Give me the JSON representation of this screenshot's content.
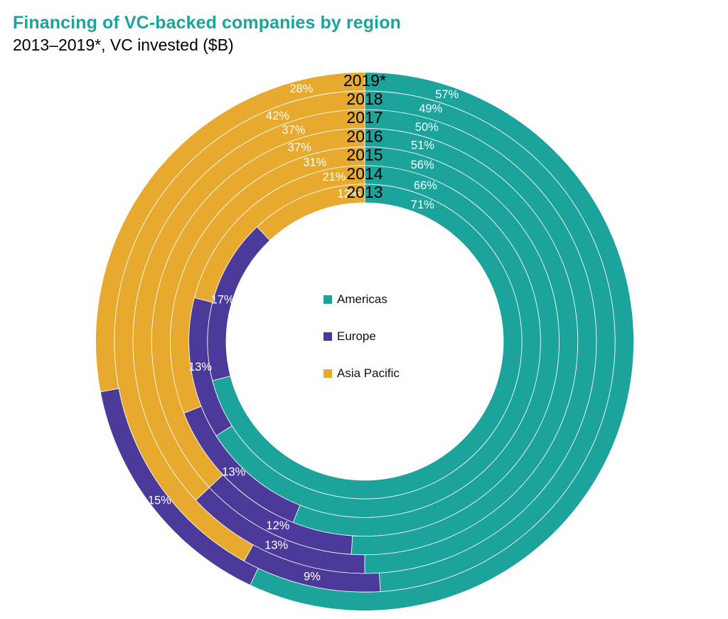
{
  "title": "Financing of VC-backed companies by region",
  "subtitle": "2013–2019*, VC invested ($B)",
  "colors": {
    "Americas": "#1ba39c",
    "Europe": "#4b3a9a",
    "Asia Pacific": "#e8aa2e"
  },
  "legend": [
    {
      "label": "Americas",
      "color": "#1ba39c"
    },
    {
      "label": "Europe",
      "color": "#4b3a9a"
    },
    {
      "label": "Asia Pacific",
      "color": "#e8aa2e"
    }
  ],
  "chart_data": {
    "type": "donut",
    "title": "Financing of VC-backed companies by region",
    "subtitle": "2013–2019*, VC invested ($B)",
    "rings_inner_to_outer": [
      "2013",
      "2014",
      "2015",
      "2016",
      "2017",
      "2018",
      "2019*"
    ],
    "series": [
      {
        "name": "Americas",
        "values": [
          71,
          66,
          56,
          51,
          50,
          49,
          57
        ]
      },
      {
        "name": "Europe",
        "values": [
          17,
          13,
          13,
          12,
          13,
          9,
          15
        ]
      },
      {
        "name": "Asia Pacific",
        "values": [
          12,
          21,
          31,
          37,
          37,
          42,
          28
        ]
      }
    ],
    "labels": {
      "Americas": [
        "71%",
        "66%",
        "56%",
        "51%",
        "50%",
        "49%",
        "57%"
      ],
      "Europe": [
        "17%",
        "13%",
        "13%",
        "12%",
        "13%",
        "9%",
        "15%"
      ],
      "Asia Pacific": [
        "12%",
        "21%",
        "31%",
        "37%",
        "37%",
        "42%",
        "28%"
      ]
    },
    "legend_position": "center"
  }
}
